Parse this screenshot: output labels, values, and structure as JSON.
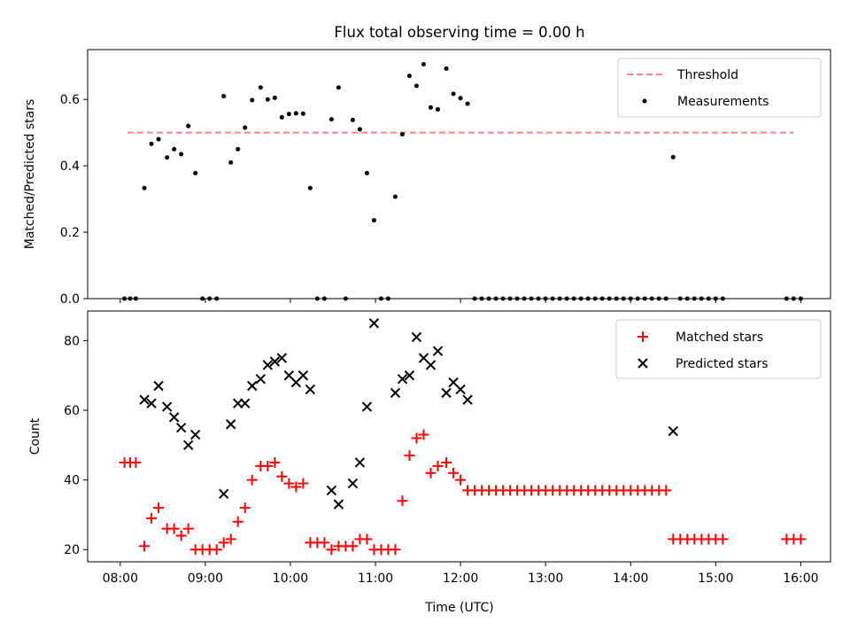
{
  "chart_data": [
    {
      "type": "scatter",
      "title": "Flux total observing time = 0.00 h",
      "xlabel": "",
      "ylabel": "Matched/Predicted stars",
      "xlim": [
        "07:37",
        "16:21"
      ],
      "ylim": [
        0,
        0.75
      ],
      "yticks": [
        0.0,
        0.2,
        0.4,
        0.6
      ],
      "ytick_labels": [
        "0.0",
        "0.2",
        "0.4",
        "0.6"
      ],
      "xticks": [
        "08:00",
        "09:00",
        "10:00",
        "11:00",
        "12:00",
        "13:00",
        "14:00",
        "15:00",
        "16:00"
      ],
      "xtick_labels_visible": false,
      "grid": false,
      "legend_position": "upper right",
      "threshold": {
        "name": "Threshold",
        "value": 0.5,
        "x_range": [
          "08:05",
          "15:55"
        ],
        "color": "#ff7f7f",
        "style": "dashed"
      },
      "series": [
        {
          "name": "Measurements",
          "marker": "dot",
          "color": "#000000",
          "points": [
            [
              "08:03",
              0.0
            ],
            [
              "08:07",
              0.0
            ],
            [
              "08:11",
              0.0
            ],
            [
              "08:17",
              0.333
            ],
            [
              "08:22",
              0.466
            ],
            [
              "08:27",
              0.48
            ],
            [
              "08:33",
              0.425
            ],
            [
              "08:38",
              0.45
            ],
            [
              "08:43",
              0.435
            ],
            [
              "08:48",
              0.52
            ],
            [
              "08:53",
              0.378
            ],
            [
              "08:58",
              0.0
            ],
            [
              "09:03",
              0.0
            ],
            [
              "09:08",
              0.0
            ],
            [
              "09:13",
              0.61
            ],
            [
              "09:18",
              0.41
            ],
            [
              "09:23",
              0.45
            ],
            [
              "09:28",
              0.515
            ],
            [
              "09:33",
              0.598
            ],
            [
              "09:39",
              0.636
            ],
            [
              "09:44",
              0.6
            ],
            [
              "09:49",
              0.605
            ],
            [
              "09:54",
              0.546
            ],
            [
              "09:59",
              0.556
            ],
            [
              "10:04",
              0.558
            ],
            [
              "10:09",
              0.557
            ],
            [
              "10:14",
              0.333
            ],
            [
              "10:19",
              0.0
            ],
            [
              "10:24",
              0.0
            ],
            [
              "10:29",
              0.54
            ],
            [
              "10:34",
              0.636
            ],
            [
              "10:39",
              0.0
            ],
            [
              "10:44",
              0.538
            ],
            [
              "10:49",
              0.51
            ],
            [
              "10:54",
              0.378
            ],
            [
              "10:59",
              0.236
            ],
            [
              "11:04",
              0.0
            ],
            [
              "11:09",
              0.0
            ],
            [
              "11:14",
              0.307
            ],
            [
              "11:19",
              0.495
            ],
            [
              "11:24",
              0.671
            ],
            [
              "11:29",
              0.641
            ],
            [
              "11:34",
              0.706
            ],
            [
              "11:39",
              0.576
            ],
            [
              "11:44",
              0.57
            ],
            [
              "11:50",
              0.693
            ],
            [
              "11:55",
              0.617
            ],
            [
              "12:00",
              0.604
            ],
            [
              "12:05",
              0.587
            ],
            [
              "12:10",
              0.0
            ],
            [
              "12:15",
              0.0
            ],
            [
              "12:20",
              0.0
            ],
            [
              "12:25",
              0.0
            ],
            [
              "12:30",
              0.0
            ],
            [
              "12:35",
              0.0
            ],
            [
              "12:40",
              0.0
            ],
            [
              "12:45",
              0.0
            ],
            [
              "12:50",
              0.0
            ],
            [
              "12:55",
              0.0
            ],
            [
              "13:00",
              0.0
            ],
            [
              "13:05",
              0.0
            ],
            [
              "13:10",
              0.0
            ],
            [
              "13:15",
              0.0
            ],
            [
              "13:20",
              0.0
            ],
            [
              "13:25",
              0.0
            ],
            [
              "13:30",
              0.0
            ],
            [
              "13:35",
              0.0
            ],
            [
              "13:40",
              0.0
            ],
            [
              "13:45",
              0.0
            ],
            [
              "13:50",
              0.0
            ],
            [
              "13:55",
              0.0
            ],
            [
              "14:00",
              0.0
            ],
            [
              "14:05",
              0.0
            ],
            [
              "14:10",
              0.0
            ],
            [
              "14:15",
              0.0
            ],
            [
              "14:20",
              0.0
            ],
            [
              "14:25",
              0.0
            ],
            [
              "14:30",
              0.426
            ],
            [
              "14:35",
              0.0
            ],
            [
              "14:40",
              0.0
            ],
            [
              "14:45",
              0.0
            ],
            [
              "14:50",
              0.0
            ],
            [
              "14:55",
              0.0
            ],
            [
              "15:00",
              0.0
            ],
            [
              "15:05",
              0.0
            ],
            [
              "15:50",
              0.0
            ],
            [
              "15:55",
              0.0
            ],
            [
              "16:00",
              0.0
            ]
          ]
        }
      ]
    },
    {
      "type": "scatter",
      "title": "",
      "xlabel": "Time (UTC)",
      "ylabel": "Count",
      "xlim": [
        "07:37",
        "16:21"
      ],
      "ylim": [
        16.5,
        88.5
      ],
      "yticks": [
        20,
        40,
        60,
        80
      ],
      "ytick_labels": [
        "20",
        "40",
        "60",
        "80"
      ],
      "xticks": [
        "08:00",
        "09:00",
        "10:00",
        "11:00",
        "12:00",
        "13:00",
        "14:00",
        "15:00",
        "16:00"
      ],
      "xtick_labels": [
        "08:00",
        "09:00",
        "10:00",
        "11:00",
        "12:00",
        "13:00",
        "14:00",
        "15:00",
        "16:00"
      ],
      "grid": false,
      "legend_position": "upper right",
      "series": [
        {
          "name": "Matched stars",
          "marker": "plus",
          "color": "#ff0000",
          "points": [
            [
              "08:03",
              45
            ],
            [
              "08:07",
              45
            ],
            [
              "08:11",
              45
            ],
            [
              "08:17",
              21
            ],
            [
              "08:22",
              29
            ],
            [
              "08:27",
              32
            ],
            [
              "08:33",
              26
            ],
            [
              "08:38",
              26
            ],
            [
              "08:43",
              24
            ],
            [
              "08:48",
              26
            ],
            [
              "08:53",
              20
            ],
            [
              "08:58",
              20
            ],
            [
              "09:03",
              20
            ],
            [
              "09:08",
              20
            ],
            [
              "09:13",
              22
            ],
            [
              "09:18",
              23
            ],
            [
              "09:23",
              28
            ],
            [
              "09:28",
              32
            ],
            [
              "09:33",
              40
            ],
            [
              "09:39",
              44
            ],
            [
              "09:44",
              44
            ],
            [
              "09:49",
              45
            ],
            [
              "09:54",
              41
            ],
            [
              "09:59",
              39
            ],
            [
              "10:04",
              38
            ],
            [
              "10:09",
              39
            ],
            [
              "10:14",
              22
            ],
            [
              "10:19",
              22
            ],
            [
              "10:24",
              22
            ],
            [
              "10:29",
              20
            ],
            [
              "10:34",
              21
            ],
            [
              "10:39",
              21
            ],
            [
              "10:44",
              21
            ],
            [
              "10:49",
              23
            ],
            [
              "10:54",
              23
            ],
            [
              "10:59",
              20
            ],
            [
              "11:04",
              20
            ],
            [
              "11:09",
              20
            ],
            [
              "11:14",
              20
            ],
            [
              "11:19",
              34
            ],
            [
              "11:24",
              47
            ],
            [
              "11:29",
              52
            ],
            [
              "11:34",
              53
            ],
            [
              "11:39",
              42
            ],
            [
              "11:44",
              44
            ],
            [
              "11:50",
              45
            ],
            [
              "11:55",
              42
            ],
            [
              "12:00",
              40
            ],
            [
              "12:05",
              37
            ],
            [
              "12:10",
              37
            ],
            [
              "12:15",
              37
            ],
            [
              "12:20",
              37
            ],
            [
              "12:25",
              37
            ],
            [
              "12:30",
              37
            ],
            [
              "12:35",
              37
            ],
            [
              "12:40",
              37
            ],
            [
              "12:45",
              37
            ],
            [
              "12:50",
              37
            ],
            [
              "12:55",
              37
            ],
            [
              "13:00",
              37
            ],
            [
              "13:05",
              37
            ],
            [
              "13:10",
              37
            ],
            [
              "13:15",
              37
            ],
            [
              "13:20",
              37
            ],
            [
              "13:25",
              37
            ],
            [
              "13:30",
              37
            ],
            [
              "13:35",
              37
            ],
            [
              "13:40",
              37
            ],
            [
              "13:45",
              37
            ],
            [
              "13:50",
              37
            ],
            [
              "13:55",
              37
            ],
            [
              "14:00",
              37
            ],
            [
              "14:05",
              37
            ],
            [
              "14:10",
              37
            ],
            [
              "14:15",
              37
            ],
            [
              "14:20",
              37
            ],
            [
              "14:25",
              37
            ],
            [
              "14:30",
              23
            ],
            [
              "14:35",
              23
            ],
            [
              "14:40",
              23
            ],
            [
              "14:45",
              23
            ],
            [
              "14:50",
              23
            ],
            [
              "14:55",
              23
            ],
            [
              "15:00",
              23
            ],
            [
              "15:05",
              23
            ],
            [
              "15:50",
              23
            ],
            [
              "15:55",
              23
            ],
            [
              "16:00",
              23
            ]
          ]
        },
        {
          "name": "Predicted stars",
          "marker": "x",
          "color": "#000000",
          "points": [
            [
              "08:17",
              63
            ],
            [
              "08:22",
              62
            ],
            [
              "08:27",
              67
            ],
            [
              "08:33",
              61
            ],
            [
              "08:38",
              58
            ],
            [
              "08:43",
              55
            ],
            [
              "08:48",
              50
            ],
            [
              "08:53",
              53
            ],
            [
              "09:13",
              36
            ],
            [
              "09:18",
              56
            ],
            [
              "09:23",
              62
            ],
            [
              "09:28",
              62
            ],
            [
              "09:33",
              67
            ],
            [
              "09:39",
              69
            ],
            [
              "09:44",
              73
            ],
            [
              "09:49",
              74
            ],
            [
              "09:54",
              75
            ],
            [
              "09:59",
              70
            ],
            [
              "10:04",
              68
            ],
            [
              "10:09",
              70
            ],
            [
              "10:14",
              66
            ],
            [
              "10:29",
              37
            ],
            [
              "10:34",
              33
            ],
            [
              "10:44",
              39
            ],
            [
              "10:49",
              45
            ],
            [
              "10:54",
              61
            ],
            [
              "10:59",
              85
            ],
            [
              "11:14",
              65
            ],
            [
              "11:19",
              69
            ],
            [
              "11:24",
              70
            ],
            [
              "11:29",
              81
            ],
            [
              "11:34",
              75
            ],
            [
              "11:39",
              73
            ],
            [
              "11:44",
              77
            ],
            [
              "11:50",
              65
            ],
            [
              "11:55",
              68
            ],
            [
              "12:00",
              66
            ],
            [
              "12:05",
              63
            ],
            [
              "14:30",
              54
            ]
          ]
        }
      ]
    }
  ]
}
